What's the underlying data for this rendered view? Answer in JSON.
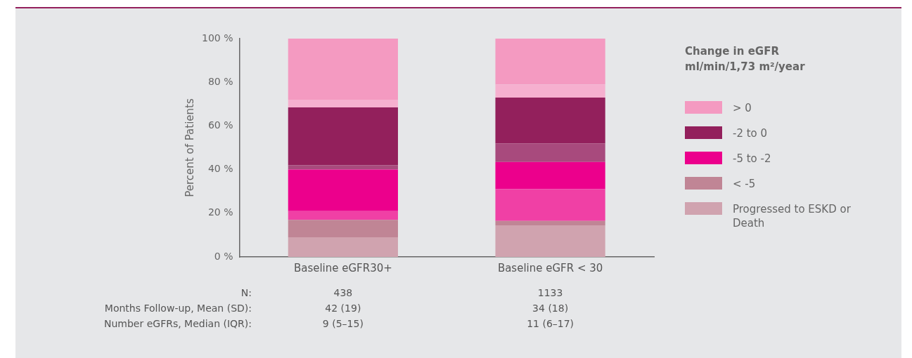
{
  "chart_data": {
    "type": "bar",
    "stacked": true,
    "ylabel": "Percent of Patients",
    "legend_title": "Change in eGFR\nml/min/1,73 m²/year",
    "legend": "right",
    "categories": [
      "Baseline eGFR30+",
      "Baseline eGFR < 30"
    ],
    "ylim": [
      0,
      100
    ],
    "yticks": [
      {
        "value": 0,
        "label": "0 %"
      },
      {
        "value": 20,
        "label": "20 %"
      },
      {
        "value": 40,
        "label": "40 %"
      },
      {
        "value": 60,
        "label": "60 %"
      },
      {
        "value": 80,
        "label": "80 %"
      },
      {
        "value": 100,
        "label": "100 %"
      }
    ],
    "grid": false,
    "series": [
      {
        "name": "Progressed to ESKD or Death",
        "color": "#d0a3af",
        "values": [
          9,
          14.5
        ]
      },
      {
        "name": "< -5",
        "color": "#c08595",
        "values": [
          8,
          2
        ]
      },
      {
        "color": "#f040a5",
        "values": [
          4,
          14.5
        ]
      },
      {
        "name": "-5 to -2",
        "color": "#ec008c",
        "values": [
          19,
          12.5
        ]
      },
      {
        "color": "#a84a7d",
        "values": [
          2,
          8.5
        ]
      },
      {
        "name": "-2 to 0",
        "color": "#93205c",
        "values": [
          26.5,
          21
        ]
      },
      {
        "color": "#f6b0cf",
        "values": [
          3.5,
          6
        ]
      },
      {
        "name": "> 0",
        "color": "#f49ac1",
        "values": [
          28,
          21
        ]
      }
    ],
    "annotations": [
      "N:",
      "438",
      "1133",
      "Months Follow-up, Mean (SD):",
      "42 (19)",
      "34 (18)",
      "Number eGFRs, Median (IQR):",
      "9 (5–15)",
      "11 (6–17)"
    ]
  }
}
